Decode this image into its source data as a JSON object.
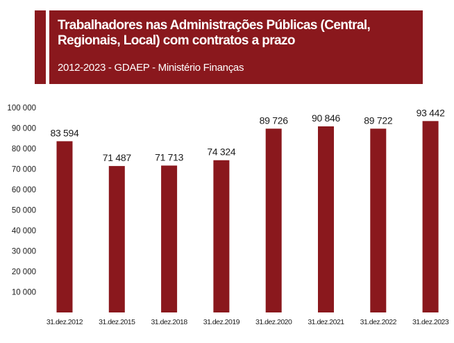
{
  "header": {
    "title": "Trabalhadores nas Administrações Públicas (Central, Regionais, Local) com contratos a prazo",
    "subtitle": "2012-2023 - GDAEP - Ministério Finanças",
    "color": "#8a181d"
  },
  "chart_data": {
    "type": "bar",
    "title": "Trabalhadores nas Administrações Públicas (Central, Regionais, Local) com contratos a prazo",
    "subtitle": "2012-2023 - GDAEP - Ministério Finanças",
    "xlabel": "",
    "ylabel": "",
    "categories": [
      "31.dez.2012",
      "31.dez.2015",
      "31.dez.2018",
      "31.dez.2019",
      "31.dez.2020",
      "31.dez.2021",
      "31.dez.2022",
      "31.dez.2023"
    ],
    "values": [
      83594,
      71487,
      71713,
      74324,
      89726,
      90846,
      89722,
      93442
    ],
    "data_labels": [
      "83 594",
      "71 487",
      "71 713",
      "74 324",
      "89 726",
      "90 846",
      "89 722",
      "93 442"
    ],
    "ylim": [
      0,
      100000
    ],
    "yticks": [
      10000,
      20000,
      30000,
      40000,
      50000,
      60000,
      70000,
      80000,
      90000,
      100000
    ],
    "ytick_labels": [
      "10 000",
      "20 000",
      "30 000",
      "40 000",
      "50 000",
      "60 000",
      "70 000",
      "80 000",
      "90 000",
      "100 000"
    ],
    "grid": false,
    "legend": "none",
    "bar_color": "#8a181d"
  }
}
